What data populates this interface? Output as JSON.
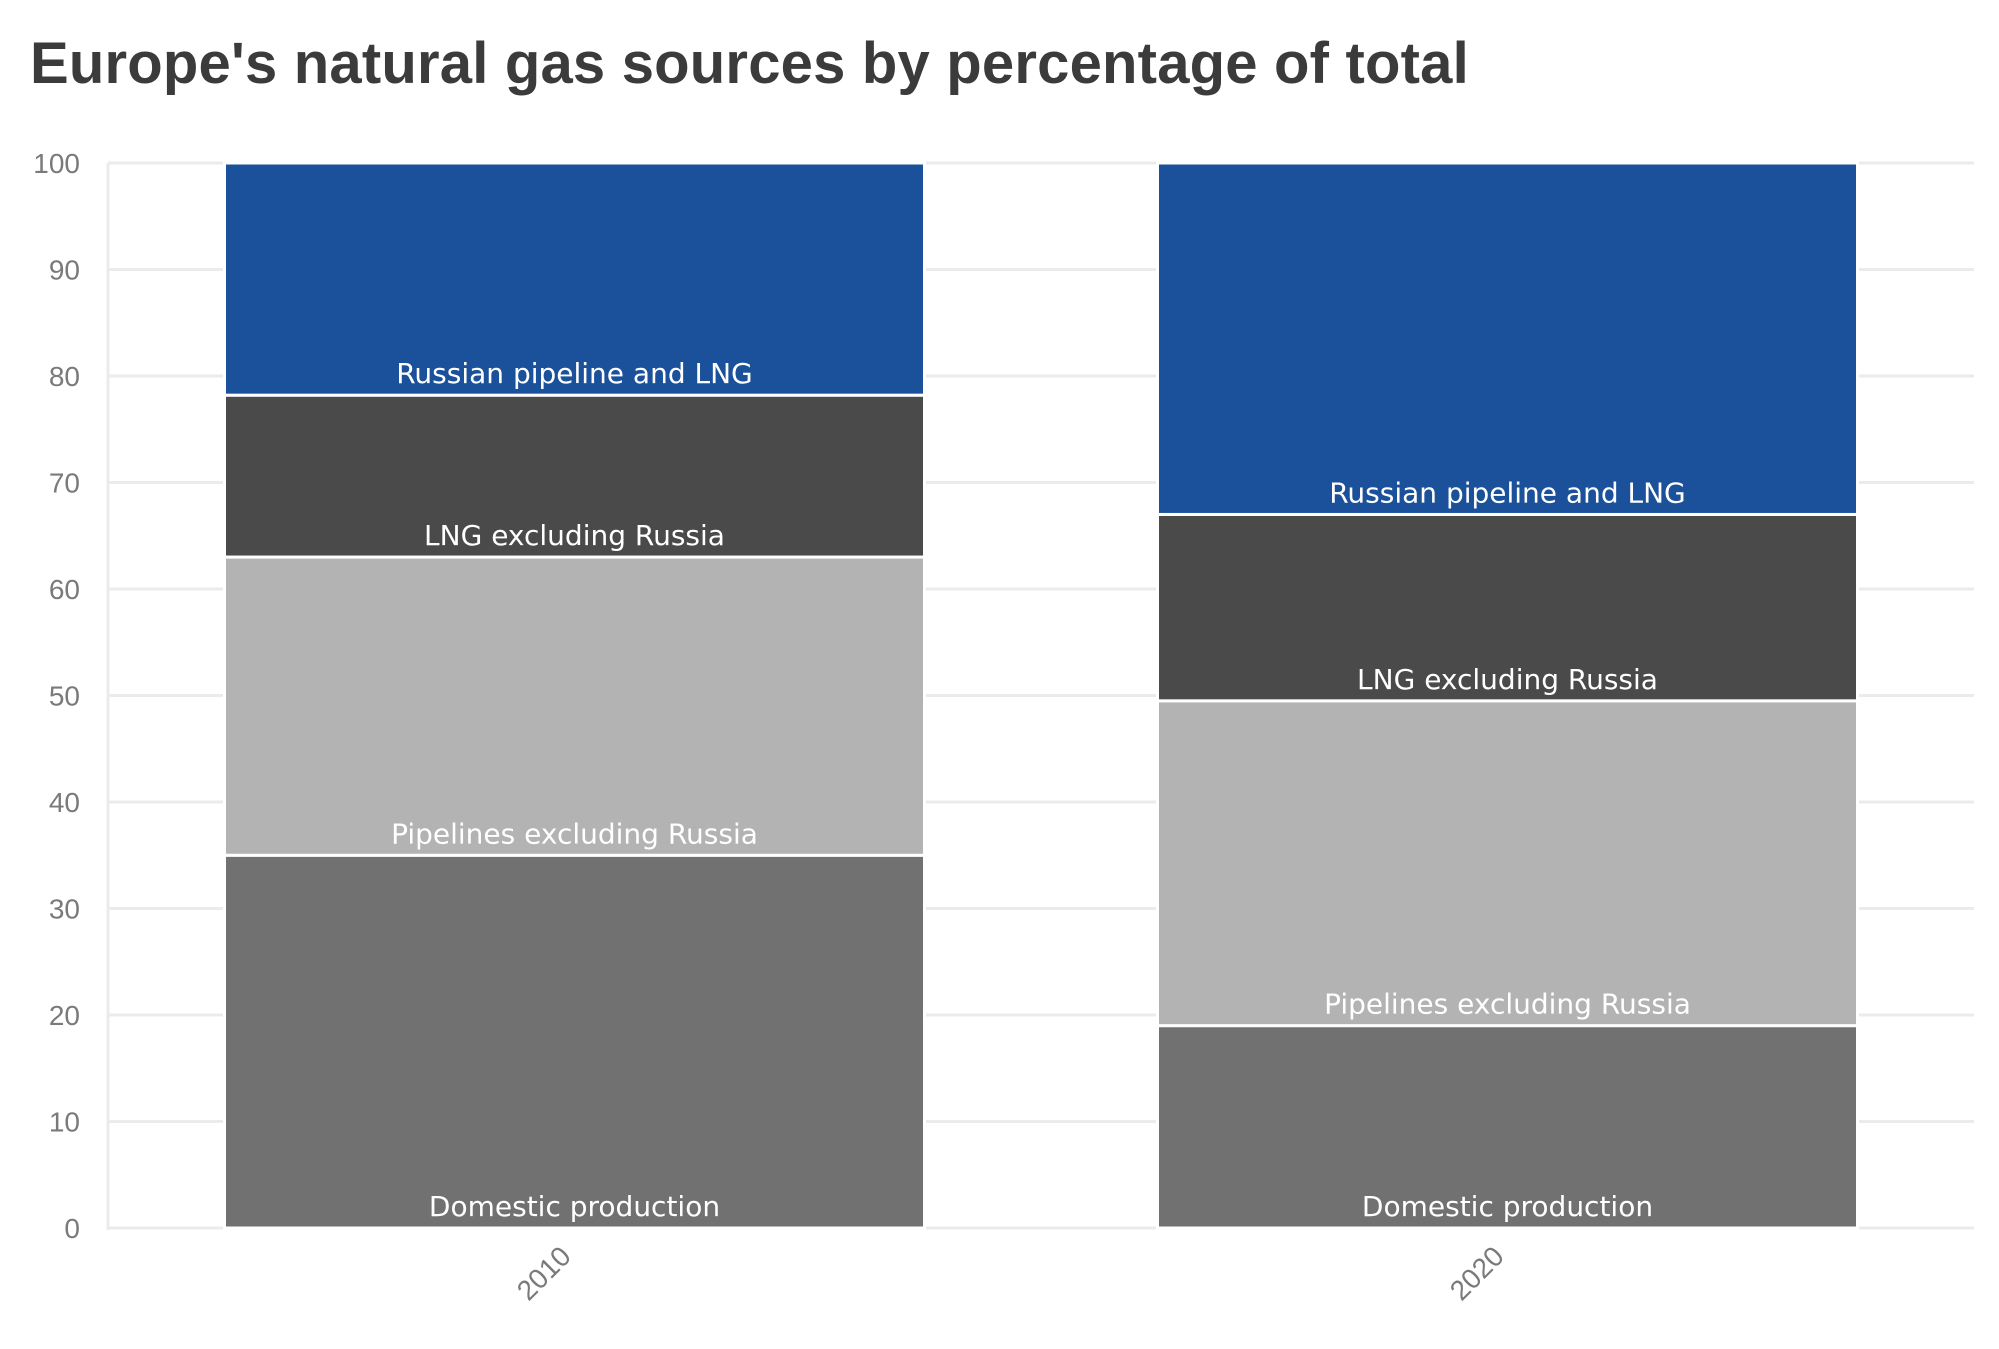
{
  "chart_data": {
    "type": "bar",
    "stacked": true,
    "title": "Europe's natural gas sources by percentage of total",
    "xlabel": "",
    "ylabel": "",
    "ylim": [
      0,
      100
    ],
    "yticks": [
      0,
      10,
      20,
      30,
      40,
      50,
      60,
      70,
      80,
      90,
      100
    ],
    "categories": [
      "2010",
      "2020"
    ],
    "series": [
      {
        "name": "Domestic production",
        "values": [
          35,
          19
        ],
        "color": "#717171"
      },
      {
        "name": "Pipelines excluding Russia",
        "values": [
          28,
          30.5
        ],
        "color": "#b3b3b3"
      },
      {
        "name": "LNG excluding Russia",
        "values": [
          15.2,
          17.5
        ],
        "color": "#4a4a4a"
      },
      {
        "name": "Russian pipeline and LNG",
        "values": [
          21.8,
          33
        ],
        "color": "#1b519b"
      }
    ],
    "grid": true,
    "segment_border_color": "#ffffff"
  }
}
